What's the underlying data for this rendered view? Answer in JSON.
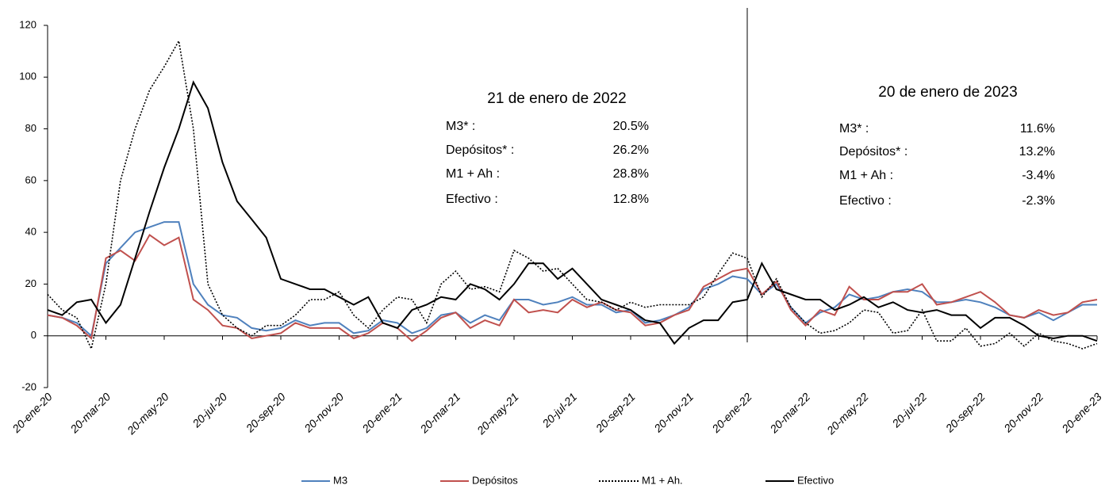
{
  "chart_data": {
    "type": "line",
    "categories": [
      "20-ene-20",
      null,
      null,
      null,
      "20-mar-20",
      null,
      null,
      null,
      "20-may-20",
      null,
      null,
      null,
      "20-jul-20",
      null,
      null,
      null,
      "20-sep-20",
      null,
      null,
      null,
      "20-nov-20",
      null,
      null,
      null,
      "20-ene-21",
      null,
      null,
      null,
      "20-mar-21",
      null,
      null,
      null,
      "20-may-21",
      null,
      null,
      null,
      "20-jul-21",
      null,
      null,
      null,
      "20-sep-21",
      null,
      null,
      null,
      "20-nov-21",
      null,
      null,
      null,
      "20-ene-22",
      null,
      null,
      null,
      "20-mar-22",
      null,
      null,
      null,
      "20-may-22",
      null,
      null,
      null,
      "20-jul-22",
      null,
      null,
      null,
      "20-sep-22",
      null,
      null,
      null,
      "20-nov-22",
      null,
      null,
      null,
      "20-ene-23"
    ],
    "series": [
      {
        "name": "M3",
        "color": "#4f81bd",
        "style": "solid",
        "values": [
          8,
          7,
          5,
          0,
          28,
          34,
          40,
          42,
          44,
          44,
          20,
          12,
          8,
          7,
          3,
          2,
          3,
          6,
          4,
          5,
          5,
          1,
          2,
          6,
          5,
          1,
          3,
          8,
          9,
          5,
          8,
          6,
          14,
          14,
          12,
          13,
          15,
          12,
          12,
          9,
          10,
          5,
          6,
          8,
          11,
          18,
          20,
          23,
          22,
          16,
          20,
          11,
          5,
          9,
          11,
          16,
          14,
          15,
          17,
          18,
          17,
          13,
          13,
          14,
          13,
          11,
          8,
          7,
          9,
          6,
          9,
          12,
          12
        ]
      },
      {
        "name": "Depósitos",
        "color": "#c0504d",
        "style": "solid",
        "values": [
          8,
          7,
          4,
          -1,
          30,
          33,
          29,
          39,
          35,
          38,
          14,
          10,
          4,
          3,
          -1,
          0,
          1,
          5,
          3,
          3,
          3,
          -1,
          1,
          5,
          3,
          -2,
          2,
          7,
          9,
          3,
          6,
          4,
          14,
          9,
          10,
          9,
          14,
          11,
          13,
          10,
          9,
          4,
          5,
          8,
          10,
          19,
          22,
          25,
          26,
          16,
          21,
          10,
          4,
          10,
          8,
          19,
          14,
          14,
          17,
          17,
          20,
          12,
          13,
          15,
          17,
          13,
          8,
          7,
          10,
          8,
          9,
          13,
          14
        ]
      },
      {
        "name": "M1 + Ah.",
        "color": "#000000",
        "style": "dotted",
        "values": [
          16,
          10,
          7,
          -5,
          20,
          60,
          80,
          95,
          104,
          114,
          80,
          20,
          8,
          3,
          0,
          4,
          4,
          8,
          14,
          14,
          17,
          8,
          3,
          10,
          15,
          14,
          5,
          20,
          25,
          18,
          19,
          17,
          33,
          30,
          25,
          26,
          20,
          14,
          13,
          10,
          13,
          11,
          12,
          12,
          12,
          15,
          24,
          32,
          30,
          15,
          22,
          11,
          5,
          1,
          2,
          5,
          10,
          9,
          1,
          2,
          10,
          -2,
          -2,
          3,
          -4,
          -3,
          1,
          -4,
          1,
          -2,
          -3,
          -5,
          -3
        ]
      },
      {
        "name": "Efectivo",
        "color": "#000000",
        "style": "solid",
        "values": [
          10,
          8,
          13,
          14,
          5,
          12,
          30,
          48,
          65,
          80,
          98,
          88,
          67,
          52,
          45,
          38,
          22,
          20,
          18,
          18,
          15,
          12,
          15,
          5,
          3,
          10,
          12,
          15,
          14,
          20,
          18,
          14,
          20,
          28,
          28,
          22,
          26,
          20,
          14,
          12,
          10,
          6,
          5,
          -3,
          3,
          6,
          6,
          13,
          14,
          28,
          18,
          16,
          14,
          14,
          10,
          12,
          15,
          11,
          13,
          10,
          9,
          10,
          8,
          8,
          3,
          7,
          7,
          4,
          0,
          -1,
          0,
          0,
          -2
        ]
      }
    ],
    "ylim": [
      -20,
      120
    ],
    "yticks": [
      -20,
      0,
      20,
      40,
      60,
      80,
      100,
      120
    ],
    "legend": "bottom",
    "annotations": [
      {
        "title": "21 de enero de 2022",
        "rows": [
          [
            "M3* :",
            "20.5%"
          ],
          [
            "Depósitos* :",
            "26.2%"
          ],
          [
            "M1 + Ah :",
            "28.8%"
          ],
          [
            "Efectivo :",
            "12.8%"
          ]
        ]
      },
      {
        "title": "20 de enero de 2023",
        "rows": [
          [
            "M3* :",
            "11.6%"
          ],
          [
            "Depósitos* :",
            "13.2%"
          ],
          [
            "M1 + Ah :",
            "-3.4%"
          ],
          [
            "Efectivo :",
            "-2.3%"
          ]
        ]
      }
    ]
  }
}
